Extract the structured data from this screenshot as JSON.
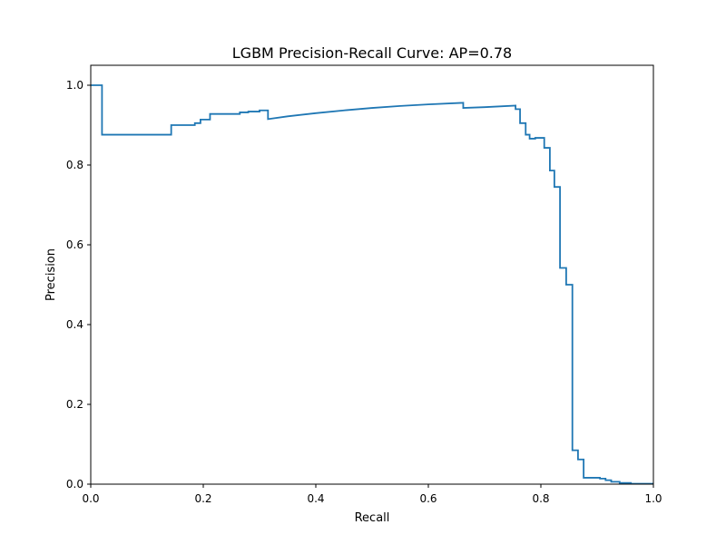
{
  "chart_data": {
    "type": "line",
    "step": "post",
    "title": "LGBM Precision-Recall Curve: AP=0.78",
    "xlabel": "Recall",
    "ylabel": "Precision",
    "xlim": [
      0.0,
      1.0
    ],
    "ylim": [
      0.0,
      1.05
    ],
    "grid": false,
    "legend": "none",
    "xticks": [
      "0.0",
      "0.2",
      "0.4",
      "0.6",
      "0.8",
      "1.0"
    ],
    "yticks": [
      "0.0",
      "0.2",
      "0.4",
      "0.6",
      "0.8",
      "1.0"
    ],
    "series": [
      {
        "color": "#1f77b4",
        "x": [
          0.0,
          0.02,
          0.02,
          0.143,
          0.143,
          0.185,
          0.185,
          0.195,
          0.195,
          0.212,
          0.212,
          0.265,
          0.265,
          0.28,
          0.28,
          0.3,
          0.3,
          0.315,
          0.315,
          0.35,
          0.4,
          0.45,
          0.5,
          0.55,
          0.6,
          0.662,
          0.662,
          0.7,
          0.755,
          0.755,
          0.763,
          0.763,
          0.773,
          0.773,
          0.78,
          0.78,
          0.79,
          0.79,
          0.806,
          0.806,
          0.816,
          0.816,
          0.824,
          0.824,
          0.834,
          0.834,
          0.845,
          0.845,
          0.856,
          0.856,
          0.866,
          0.866,
          0.876,
          0.876,
          0.905,
          0.905,
          0.915,
          0.915,
          0.925,
          0.925,
          0.94,
          0.94,
          0.96,
          0.96,
          1.0
        ],
        "y": [
          1.0,
          1.0,
          0.876,
          0.876,
          0.9,
          0.9,
          0.905,
          0.905,
          0.914,
          0.914,
          0.928,
          0.928,
          0.932,
          0.932,
          0.934,
          0.934,
          0.937,
          0.937,
          0.915,
          0.922,
          0.93,
          0.937,
          0.943,
          0.948,
          0.952,
          0.956,
          0.943,
          0.945,
          0.949,
          0.94,
          0.94,
          0.905,
          0.905,
          0.876,
          0.876,
          0.866,
          0.866,
          0.868,
          0.868,
          0.843,
          0.843,
          0.786,
          0.786,
          0.745,
          0.745,
          0.542,
          0.542,
          0.5,
          0.5,
          0.085,
          0.085,
          0.062,
          0.062,
          0.016,
          0.016,
          0.014,
          0.014,
          0.01,
          0.01,
          0.006,
          0.006,
          0.003,
          0.003,
          0.001,
          0.001
        ]
      }
    ]
  }
}
